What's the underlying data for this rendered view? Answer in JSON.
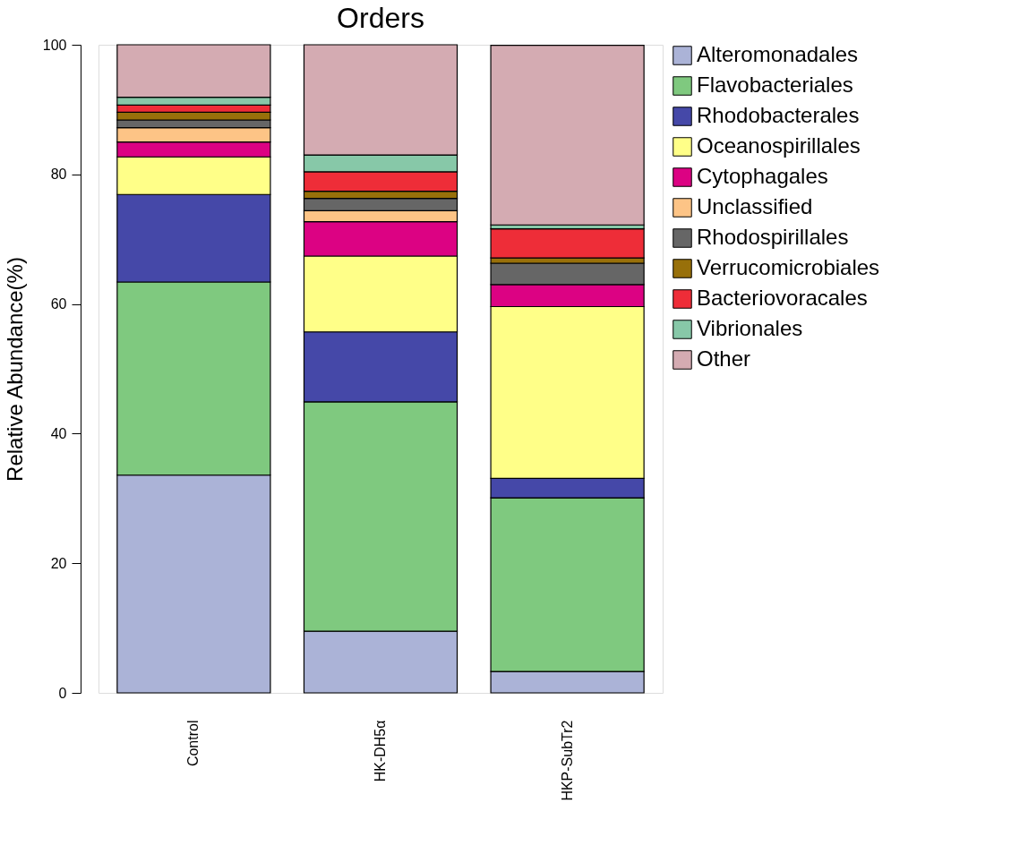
{
  "chart_data": {
    "type": "bar",
    "title": "Orders",
    "ylabel": "Relative Abundance(%)",
    "stacked": true,
    "legend": "right",
    "grid": false,
    "categories": [
      "Control",
      "HK-DH5α",
      "HKP-SubTr2"
    ],
    "ylim": [
      0,
      100
    ],
    "yticks": [
      0,
      20,
      40,
      60,
      80,
      100
    ],
    "series": [
      {
        "name": "Alteromonadales",
        "color": "#abb3d7",
        "values": [
          33.6,
          9.5,
          3.3
        ]
      },
      {
        "name": "Flavobacteriales",
        "color": "#7fc97f",
        "values": [
          29.8,
          35.4,
          26.8
        ]
      },
      {
        "name": "Rhodobacterales",
        "color": "#4548a8",
        "values": [
          13.5,
          10.8,
          3.0
        ]
      },
      {
        "name": "Oceanospirillales",
        "color": "#ffff88",
        "values": [
          5.8,
          11.7,
          26.5
        ]
      },
      {
        "name": "Cytophagales",
        "color": "#dc0283",
        "values": [
          2.3,
          5.3,
          3.4
        ]
      },
      {
        "name": "Unclassified",
        "color": "#fdc486",
        "values": [
          2.2,
          1.7,
          null
        ]
      },
      {
        "name": "Rhodospirillales",
        "color": "#666666",
        "values": [
          1.2,
          1.9,
          3.3
        ]
      },
      {
        "name": "Verrucomicrobiales",
        "color": "#98700a",
        "values": [
          1.2,
          1.1,
          0.8
        ]
      },
      {
        "name": "Bacteriovoracales",
        "color": "#ee2d38",
        "values": [
          1.1,
          3.0,
          4.5
        ]
      },
      {
        "name": "Vibrionales",
        "color": "#87c8a8",
        "values": [
          1.2,
          2.6,
          0.6
        ]
      },
      {
        "name": "Other",
        "color": "#d4abb2",
        "values": [
          8.1,
          17.0,
          27.7
        ]
      }
    ]
  }
}
